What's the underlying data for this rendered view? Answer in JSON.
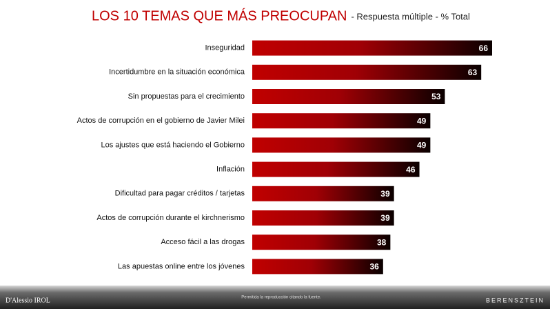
{
  "chart_data": {
    "type": "bar",
    "orientation": "horizontal",
    "title": "LOS 10 TEMAS QUE MÁS PREOCUPAN",
    "subtitle": "- Respuesta múltiple - % Total",
    "categories": [
      "Inseguridad",
      "Incertidumbre en la situación económica",
      "Sin propuestas para el crecimiento",
      "Actos de corrupción en el gobierno de Javier Milei",
      "Los ajustes que está haciendo el Gobierno",
      "Inflación",
      "Dificultad para pagar créditos / tarjetas",
      "Actos de corrupción durante el kirchnerismo",
      "Acceso fácil a las drogas",
      "Las apuestas online entre los jóvenes"
    ],
    "values": [
      66,
      63,
      53,
      49,
      49,
      46,
      39,
      39,
      38,
      36
    ],
    "color": "#c00000"
  },
  "footer": {
    "left": "D'Alessio IROL",
    "center": "Permitida la reproducción citando la fuente.",
    "right": "BERENSZTEIN"
  }
}
